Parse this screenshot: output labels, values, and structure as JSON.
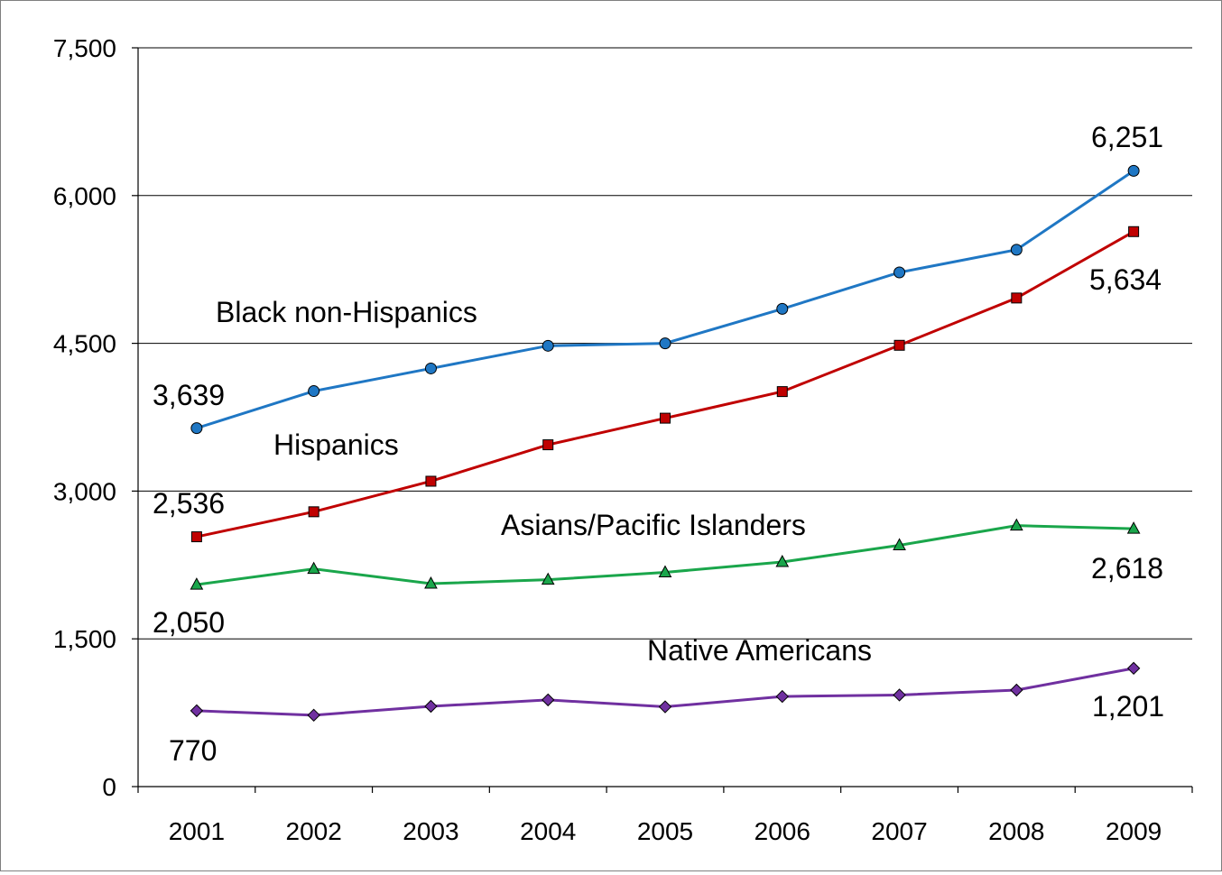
{
  "chart_data": {
    "type": "line",
    "title": "",
    "xlabel": "",
    "ylabel": "",
    "categories": [
      "2001",
      "2002",
      "2003",
      "2004",
      "2005",
      "2006",
      "2007",
      "2008",
      "2009"
    ],
    "ylim": [
      0,
      7500
    ],
    "yticks": [
      0,
      1500,
      3000,
      4500,
      6000,
      7500
    ],
    "ytick_labels": [
      "0",
      "1,500",
      "3,000",
      "4,500",
      "6,000",
      "7,500"
    ],
    "grid": "horizontal",
    "legend": "none",
    "series": [
      {
        "name": "Black non-Hispanics",
        "color": "#1f77c4",
        "marker": "circle",
        "values": [
          3639,
          4015,
          4245,
          4475,
          4500,
          4850,
          5220,
          5450,
          6251
        ],
        "start_label": "3,639",
        "end_label": "6,251"
      },
      {
        "name": "Hispanics",
        "color": "#c00000",
        "marker": "square",
        "values": [
          2536,
          2790,
          3100,
          3470,
          3740,
          4010,
          4480,
          4960,
          5634
        ],
        "start_label": "2,536",
        "end_label": "5,634"
      },
      {
        "name": "Asians/Pacific Islanders",
        "color": "#1aa64b",
        "marker": "triangle",
        "values": [
          2050,
          2210,
          2060,
          2100,
          2175,
          2280,
          2450,
          2650,
          2618
        ],
        "start_label": "2,050",
        "end_label": "2,618"
      },
      {
        "name": "Native Americans",
        "color": "#7030a0",
        "marker": "diamond",
        "values": [
          770,
          725,
          815,
          880,
          810,
          915,
          930,
          980,
          1201
        ],
        "start_label": "770",
        "end_label": "1,201"
      }
    ]
  }
}
